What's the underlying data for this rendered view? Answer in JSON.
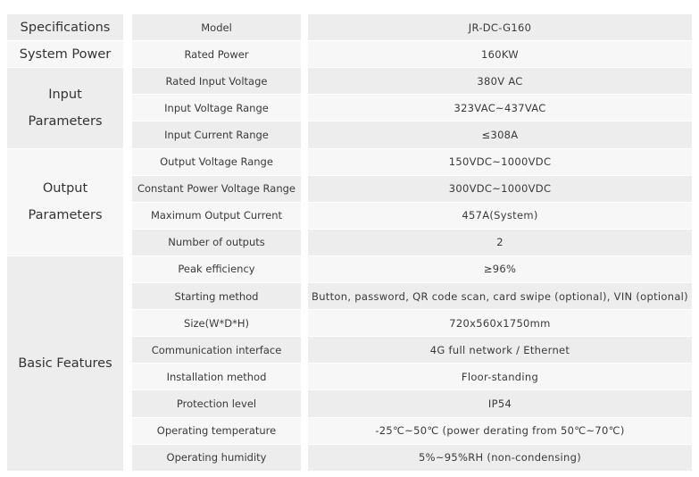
{
  "table": {
    "groups": [
      {
        "label_lines": [
          "Specifications"
        ],
        "rows": [
          [
            "Model",
            "JR-DC-G160"
          ]
        ]
      },
      {
        "label_lines": [
          "System Power"
        ],
        "rows": [
          [
            "Rated Power",
            "160KW"
          ]
        ]
      },
      {
        "label_lines": [
          "Input",
          "Parameters"
        ],
        "rows": [
          [
            "Rated Input Voltage",
            "380V AC"
          ],
          [
            "Input Voltage Range",
            "323VAC~437VAC"
          ],
          [
            "Input Current Range",
            "≤308A"
          ]
        ]
      },
      {
        "label_lines": [
          "Output",
          "Parameters"
        ],
        "rows": [
          [
            "Output Voltage Range",
            "150VDC~1000VDC"
          ],
          [
            "Constant Power Voltage Range",
            "300VDC~1000VDC"
          ],
          [
            "Maximum Output Current",
            "457A(System)"
          ],
          [
            "Number of outputs",
            "2"
          ]
        ]
      },
      {
        "label_lines": [
          "Basic Features"
        ],
        "rows": [
          [
            "Peak efficiency",
            "≥96%"
          ],
          [
            "Starting method",
            "Button, password, QR code scan, card swipe (optional), VIN (optional)"
          ],
          [
            "Size(W*D*H)",
            "720x560x1750mm"
          ],
          [
            "Communication interface",
            "4G full network / Ethernet"
          ],
          [
            "Installation method",
            "Floor-standing"
          ],
          [
            "Protection level",
            "IP54"
          ],
          [
            "Operating temperature",
            "-25℃~50℃ (power derating from 50℃~70℃)"
          ],
          [
            "Operating humidity",
            "5%~95%RH (non-condensing)"
          ]
        ]
      }
    ]
  }
}
